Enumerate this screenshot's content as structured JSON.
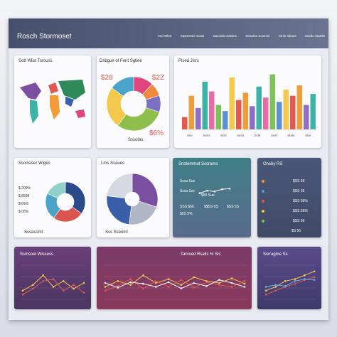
{
  "header": {
    "title": "Rosch Stormoset",
    "nav": [
      "Ssd Wkot",
      "Sasmetsie Sonis",
      "Sacoslat Satsins",
      "Sissolse Soisnon",
      "Stnhr Sboss",
      "Sasde Saoble"
    ]
  },
  "map": {
    "title": "Sott Wlist Tsrouss"
  },
  "donut_top": {
    "title": "Dsbgue of Fent Sgtiee",
    "labels": [
      "$28",
      "$2Z",
      "$6%"
    ],
    "caption": "Sssotas",
    "segments": {
      "values": [
        12,
        8,
        10,
        30,
        25,
        15
      ],
      "colors": [
        "#e0457b",
        "#f08a3a",
        "#7a6fc0",
        "#8fbf4a",
        "#f2c94c",
        "#4aa3c9"
      ]
    }
  },
  "bars": {
    "title": "Plsed Jlsrs",
    "ylim": [
      0,
      100
    ],
    "values": [
      20,
      55,
      35,
      78,
      62,
      40,
      30,
      85,
      48,
      60,
      38,
      70,
      52,
      90,
      45,
      65,
      55,
      72,
      40,
      58
    ],
    "colors": [
      "#e05a4f",
      "#f29c38",
      "#8e6cc7",
      "#3fb3a8",
      "#e86aa6",
      "#7cc35a",
      "#5b8fd6",
      "#f2c94c"
    ],
    "labels": [
      "Sse",
      "Ssns",
      "Sbls",
      "Seos",
      "Ssle",
      "Snsr",
      "Sbas",
      "Sbe"
    ]
  },
  "donut_mid": {
    "title": "Ssoosiser Wiges",
    "items": [
      "$ 209%",
      "$ 8598",
      "$ 8%5",
      "$ 06%"
    ],
    "caption": "Sssasomt",
    "segments": {
      "values": [
        35,
        25,
        22,
        18
      ],
      "colors": [
        "#2c4a8a",
        "#d9534f",
        "#4aa3c9",
        "#8fd0c8"
      ]
    }
  },
  "pie_mid": {
    "title": "Lms Ssaues",
    "caption": "Sss Sseoml",
    "segments": {
      "values": [
        30,
        22,
        25,
        23
      ],
      "colors": [
        "#7b4fa0",
        "#b0b6c6",
        "#3a5ea8",
        "#d7d9e2"
      ]
    }
  },
  "teal": {
    "title": "Snstemmat Sscrams",
    "items": [
      "Sssa Sue",
      "Sssa Sss",
      "$50 Sue"
    ],
    "stats": [
      "SSS $56",
      "$$SS 6S",
      "$SS 5S",
      "$5S 5%"
    ],
    "ylim": [
      0,
      100
    ],
    "values": [
      35,
      55,
      48,
      66,
      70
    ]
  },
  "list": {
    "title": "Onsby RS",
    "rows": [
      "$SS 56",
      "$SS 55",
      "$SS 56%",
      "$SS 56%",
      "$SS 56"
    ],
    "dots": [
      "#f29c38",
      "#4aa3c9",
      "#e05a4f",
      "#f2c94c",
      "#7cc35a"
    ],
    "footer": "$S 56"
  },
  "line_a": {
    "title": "Ssmsoel Wissess",
    "ylim": [
      0,
      100
    ],
    "series": [
      {
        "color": "#f2c94c",
        "values": [
          30,
          45,
          70,
          40,
          55,
          35,
          50
        ]
      },
      {
        "color": "#e05a4f",
        "values": [
          20,
          35,
          55,
          60,
          30,
          45,
          25
        ]
      }
    ]
  },
  "line_b": {
    "title": "Tanrsed Rsalls % Sls",
    "ylim": [
      0,
      100
    ],
    "series": [
      {
        "color": "#f2c94c",
        "values": [
          40,
          55,
          45,
          70,
          50,
          60,
          45,
          65,
          55,
          50,
          62,
          48
        ]
      },
      {
        "color": "#e05a4f",
        "values": [
          30,
          42,
          60,
          35,
          55,
          40,
          58,
          38,
          52,
          45,
          40,
          55
        ]
      },
      {
        "color": "#ffffff",
        "values": [
          50,
          38,
          52,
          48,
          40,
          52,
          36,
          50,
          42,
          58,
          50,
          40
        ]
      }
    ]
  },
  "line_c": {
    "title": "Ssrragme Ss",
    "ylim": [
      0,
      100
    ],
    "series": [
      {
        "color": "#f2c94c",
        "values": [
          30,
          40,
          55,
          60,
          70,
          80
        ]
      },
      {
        "color": "#e05a4f",
        "values": [
          20,
          30,
          40,
          48,
          58,
          65
        ]
      },
      {
        "color": "#6ab0e0",
        "values": [
          40,
          45,
          42,
          55,
          60,
          58
        ]
      }
    ]
  }
}
